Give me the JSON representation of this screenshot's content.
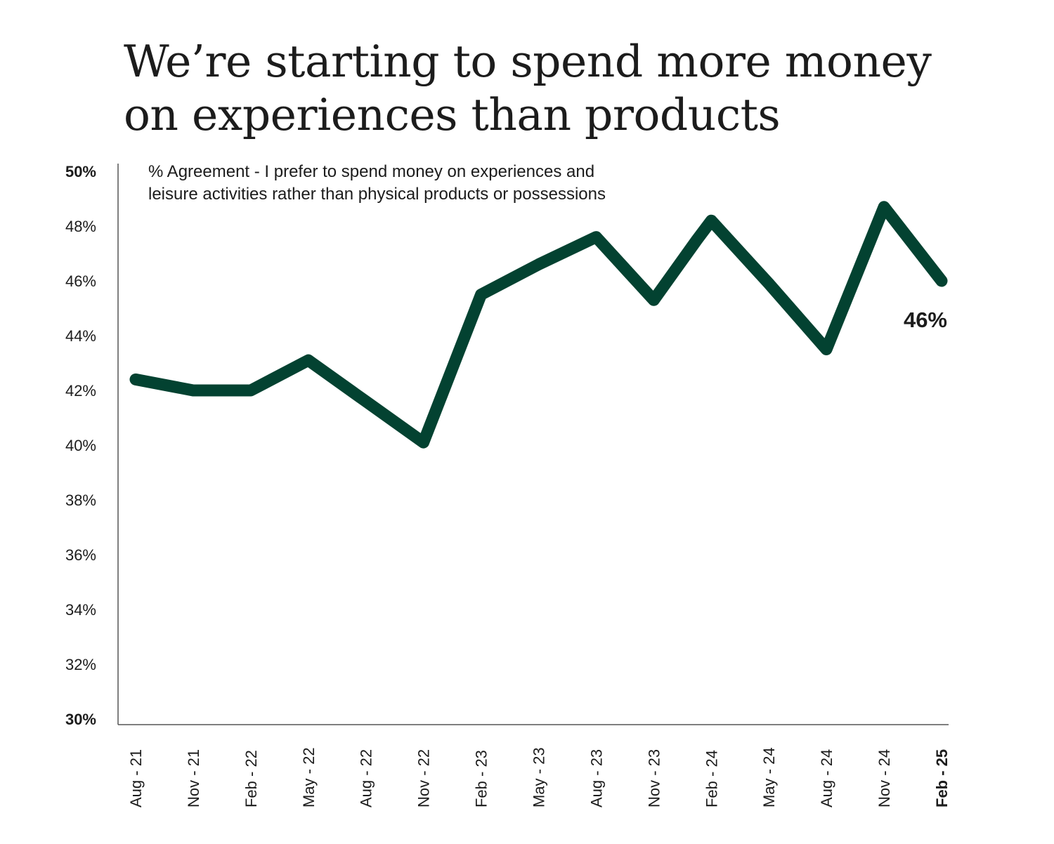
{
  "header": {
    "title_line1": "We’re starting to spend more money",
    "title_line2": "on experiences than products",
    "subtitle_line1": "% Agreement -  I prefer to spend money on experiences and",
    "subtitle_line2": "leisure activities rather than physical products or possessions"
  },
  "chart_data": {
    "type": "line",
    "title": "We’re starting to spend more money on experiences than products",
    "subtitle": "% Agreement -  I prefer to spend money on experiences and leisure activities rather than physical products or possessions",
    "xlabel": "",
    "ylabel": "",
    "categories": [
      "Aug - 21",
      "Nov - 21",
      "Feb - 22",
      "May - 22",
      "Aug - 22",
      "Nov - 22",
      "Feb - 23",
      "May - 23",
      "Aug - 23",
      "Nov - 23",
      "Feb - 24",
      "May - 24",
      "Aug - 24",
      "Nov - 24",
      "Feb - 25"
    ],
    "bold_categories": [
      "Feb - 25"
    ],
    "extra_points": [
      {
        "between": [
          "Aug - 23",
          "Nov - 23"
        ],
        "label": "",
        "y_note": "none"
      }
    ],
    "series": [
      {
        "values": [
          42.4,
          42.0,
          42.0,
          43.1,
          41.6,
          40.1,
          45.5,
          46.6,
          47.6,
          45.3,
          48.2,
          45.9,
          43.5,
          48.7,
          46.0
        ]
      }
    ],
    "intermediate_points": [
      {
        "after_index": 9,
        "position": 0.75,
        "value": 47.5
      }
    ],
    "ylim": [
      30,
      50
    ],
    "yticks": [
      "30%",
      "32%",
      "34%",
      "36%",
      "38%",
      "40%",
      "42%",
      "44%",
      "46%",
      "48%",
      "50%"
    ],
    "ytick_values": [
      30,
      32,
      34,
      36,
      38,
      40,
      42,
      44,
      46,
      48,
      50
    ],
    "bold_yticks": [
      "30%",
      "50%"
    ],
    "grid": false,
    "legend": "none",
    "callout": {
      "text": "46%",
      "category": "Feb - 25"
    },
    "line_color": "#034231"
  }
}
